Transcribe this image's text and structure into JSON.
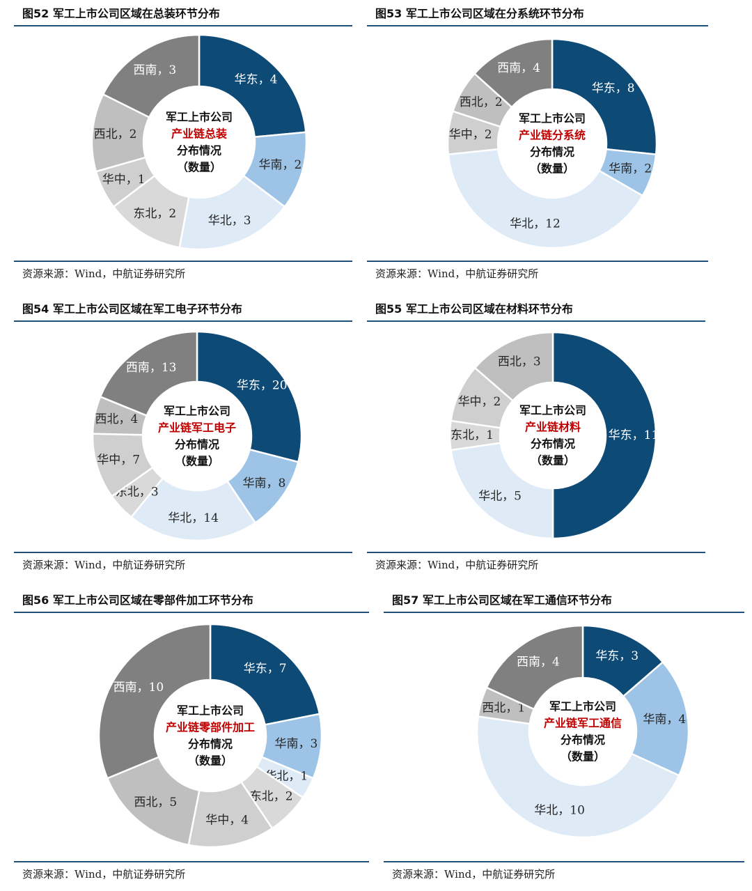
{
  "charts": [
    {
      "figure_title": "图52 军工上市公司区域在总装环节分布",
      "source": "资源来源：Wind，中航证券研究所",
      "center_text": [
        "军工上市公司",
        "产业链总装",
        "分布情况",
        "（数量）"
      ]
    },
    {
      "figure_title": "图53 军工上市公司区域在分系统环节分布",
      "source": "资源来源：Wind，中航证券研究所",
      "center_text": [
        "军工上市公司",
        "产业链分系统",
        "分布情况",
        "（数量）"
      ]
    },
    {
      "figure_title": "图54 军工上市公司区域在军工电子环节分布",
      "source": "资源来源：Wind，中航证券研究所",
      "center_text": [
        "军工上市公司",
        "产业链军工电子",
        "分布情况",
        "（数量）"
      ]
    },
    {
      "figure_title": "图55 军工上市公司区域在材料环节分布",
      "source": "资源来源：Wind，中航证券研究所",
      "center_text": [
        "军工上市公司",
        "产业链材料",
        "分布情况",
        "（数量）"
      ]
    },
    {
      "figure_title": "图56 军工上市公司区域在零部件加工环节分布",
      "source": "资源来源：Wind，中航证券研究所",
      "center_text": [
        "军工上市公司",
        "产业链零部件加工",
        "分布情况",
        "（数量）"
      ]
    },
    {
      "figure_title": "图57 军工上市公司区域在军工通信环节分布",
      "source": "资源来源：Wind，中航证券研究所",
      "center_text": [
        "军工上市公司",
        "产业链军工通信",
        "分布情况",
        "（数量）"
      ]
    }
  ],
  "chart_data": [
    {
      "type": "pie",
      "title": "图52 军工上市公司区域在总装环节分布",
      "categories": [
        "华东",
        "华南",
        "华北",
        "东北",
        "华中",
        "西北",
        "西南"
      ],
      "values": [
        4,
        2,
        3,
        2,
        1,
        2,
        3
      ]
    },
    {
      "type": "pie",
      "title": "图53 军工上市公司区域在分系统环节分布",
      "categories": [
        "华东",
        "华南",
        "华北",
        "华中",
        "西北",
        "西南"
      ],
      "values": [
        8,
        2,
        12,
        2,
        2,
        4
      ]
    },
    {
      "type": "pie",
      "title": "图54 军工上市公司区域在军工电子环节分布",
      "categories": [
        "华东",
        "华南",
        "华北",
        "东北",
        "华中",
        "西北",
        "西南"
      ],
      "values": [
        20,
        8,
        14,
        3,
        7,
        4,
        13
      ]
    },
    {
      "type": "pie",
      "title": "图55 军工上市公司区域在材料环节分布",
      "categories": [
        "华东",
        "华北",
        "东北",
        "华中",
        "西北"
      ],
      "values": [
        11,
        5,
        1,
        2,
        3
      ]
    },
    {
      "type": "pie",
      "title": "图56 军工上市公司区域在零部件加工环节分布",
      "categories": [
        "华东",
        "华南",
        "华北",
        "东北",
        "华中",
        "西北",
        "西南"
      ],
      "values": [
        7,
        3,
        1,
        2,
        4,
        5,
        10
      ]
    },
    {
      "type": "pie",
      "title": "图57 军工上市公司区域在军工通信环节分布",
      "categories": [
        "华东",
        "华南",
        "华北",
        "西北",
        "西南"
      ],
      "values": [
        3,
        4,
        10,
        1,
        4
      ]
    }
  ],
  "colors": {
    "华东": "#0e4a76",
    "华南": "#9dc3e6",
    "华北": "#deebf7",
    "东北": "#d9d9d9",
    "华中": "#cfcfcf",
    "西北": "#bfbfbf",
    "西南": "#808080",
    "accent": "#c00000",
    "rule": "#1f4e79"
  }
}
